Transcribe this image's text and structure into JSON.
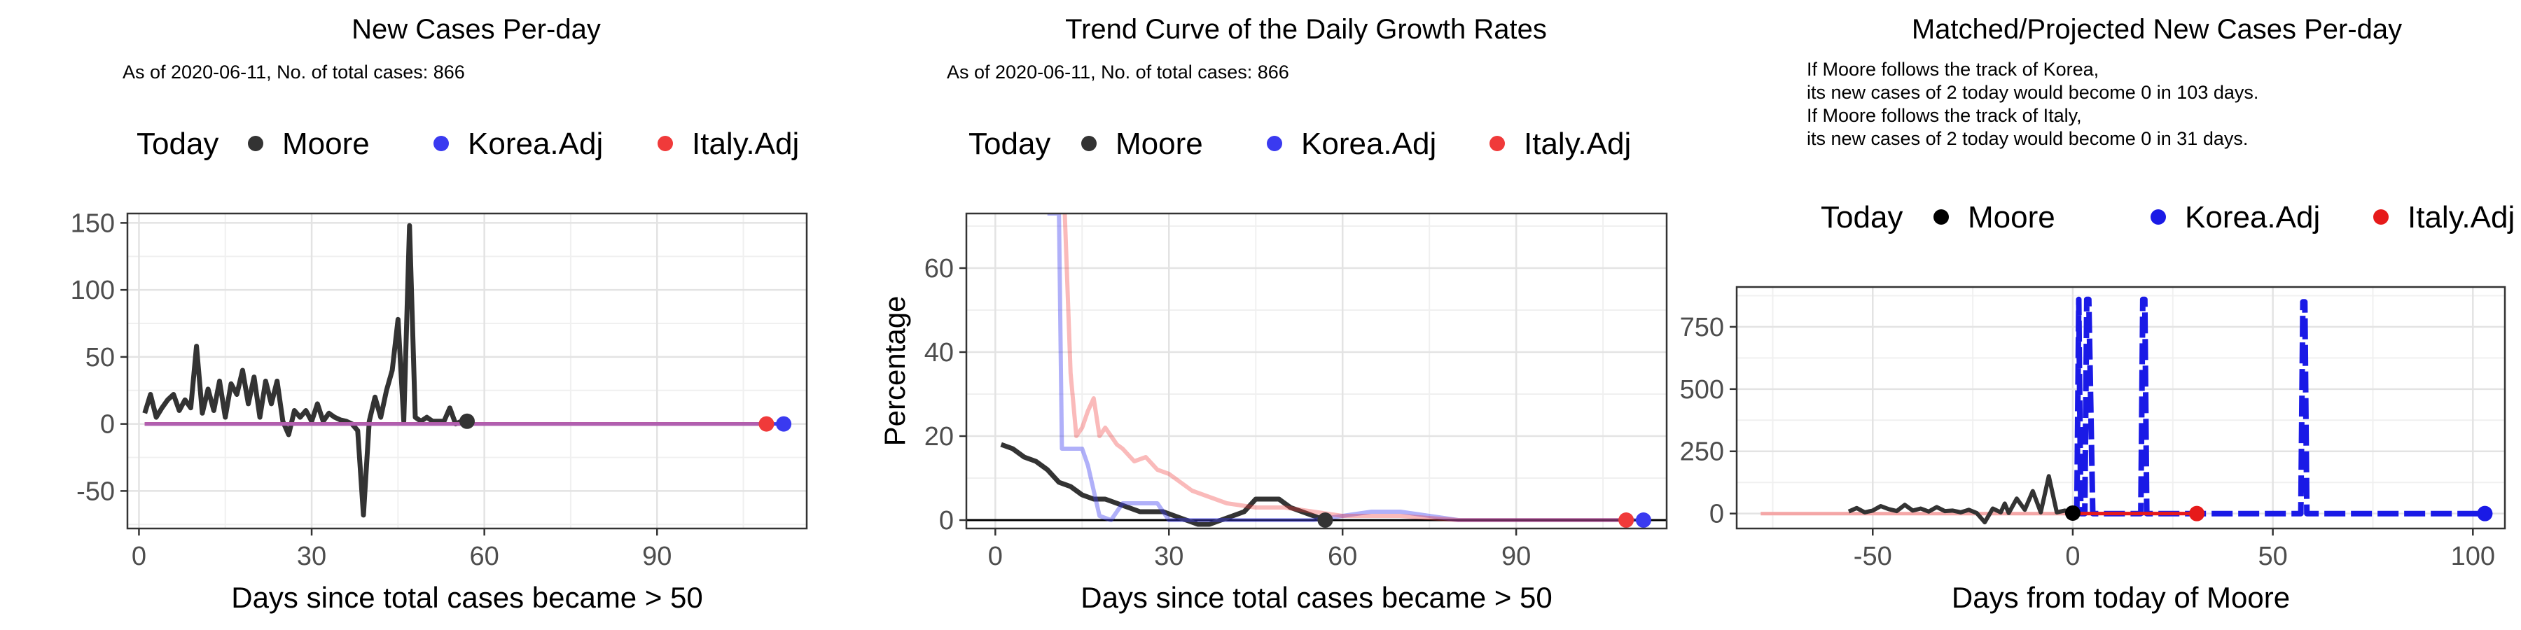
{
  "chart_data": [
    {
      "type": "line",
      "title": "New Cases Per-day",
      "subtitle": "As of 2020-06-11, No. of total cases: 866",
      "legend_title": "Today",
      "legend": [
        "Moore",
        "Korea.Adj",
        "Italy.Adj"
      ],
      "xlabel": "Days since total cases became > 50",
      "ylabel": "",
      "xlim": [
        -2,
        116
      ],
      "ylim": [
        -78,
        157
      ],
      "xticks": [
        0,
        30,
        60,
        90
      ],
      "yticks": [
        -50,
        0,
        50,
        100,
        150
      ],
      "series": [
        {
          "name": "Moore",
          "color": "#333333",
          "x": [
            1,
            2,
            3,
            4,
            5,
            6,
            7,
            8,
            9,
            10,
            11,
            12,
            13,
            14,
            15,
            16,
            17,
            18,
            19,
            20,
            21,
            22,
            23,
            24,
            25,
            26,
            27,
            28,
            29,
            30,
            31,
            32,
            33,
            34,
            35,
            36,
            37,
            38,
            39,
            40,
            41,
            42,
            43,
            44,
            45,
            46,
            47,
            48,
            49,
            50,
            51,
            52,
            53,
            54,
            55,
            56,
            57
          ],
          "y": [
            8,
            22,
            5,
            12,
            18,
            22,
            10,
            18,
            12,
            58,
            8,
            26,
            10,
            32,
            5,
            30,
            22,
            40,
            15,
            35,
            5,
            32,
            15,
            32,
            2,
            -8,
            10,
            5,
            10,
            2,
            15,
            2,
            8,
            5,
            3,
            2,
            0,
            -5,
            -68,
            2,
            20,
            5,
            25,
            40,
            78,
            2,
            148,
            5,
            2,
            5,
            2,
            2,
            2,
            12,
            0,
            2,
            2
          ]
        },
        {
          "name": "Korea.Adj",
          "color": "#3a3af0",
          "x": [
            1,
            10,
            20,
            30,
            40,
            50,
            60,
            70,
            80,
            90,
            100,
            110,
            112
          ],
          "y": [
            0,
            0,
            0,
            0,
            0,
            0,
            0,
            0,
            0,
            0,
            0,
            0,
            0
          ]
        },
        {
          "name": "Italy.Adj",
          "color": "#f03a3a",
          "x": [
            1,
            10,
            20,
            30,
            40,
            50,
            60,
            70,
            80,
            90,
            100,
            109
          ],
          "y": [
            0,
            0,
            0,
            0,
            0,
            0,
            0,
            0,
            0,
            0,
            0,
            0
          ]
        }
      ],
      "today_points": [
        {
          "series": "Moore",
          "x": 57,
          "y": 2
        },
        {
          "series": "Italy.Adj",
          "x": 109,
          "y": 0
        },
        {
          "series": "Korea.Adj",
          "x": 112,
          "y": 0
        }
      ]
    },
    {
      "type": "line",
      "title": "Trend Curve of the Daily Growth Rates",
      "subtitle": "As of 2020-06-11, No. of total cases: 866",
      "legend_title": "Today",
      "legend": [
        "Moore",
        "Korea.Adj",
        "Italy.Adj"
      ],
      "xlabel": "Days since total cases became > 50",
      "ylabel": "Percentage",
      "xlim": [
        -5,
        116
      ],
      "ylim": [
        -2,
        73
      ],
      "xticks": [
        0,
        30,
        60,
        90
      ],
      "yticks": [
        0,
        20,
        40,
        60
      ],
      "series": [
        {
          "name": "Moore",
          "color": "#333333",
          "x": [
            1,
            3,
            5,
            7,
            9,
            11,
            13,
            15,
            17,
            19,
            21,
            23,
            25,
            27,
            29,
            31,
            33,
            35,
            37,
            39,
            41,
            43,
            45,
            47,
            49,
            51,
            53,
            55,
            57
          ],
          "y": [
            18,
            17,
            15,
            14,
            12,
            9,
            8,
            6,
            5,
            5,
            4,
            3,
            2,
            2,
            2,
            1,
            0,
            -1,
            -1,
            0,
            1,
            2,
            5,
            5,
            5,
            3,
            2,
            1,
            0
          ]
        },
        {
          "name": "Korea.Adj",
          "color": "#3a3af0",
          "x": [
            9,
            11,
            11.5,
            15,
            16,
            18,
            20,
            22,
            28,
            30,
            32,
            35,
            40,
            45,
            50,
            55,
            60,
            65,
            70,
            75,
            80,
            90,
            100,
            110,
            112
          ],
          "y": [
            73,
            73,
            17,
            17,
            13,
            1,
            0,
            4,
            4,
            0,
            0,
            0,
            0,
            0,
            0,
            0,
            1,
            2,
            2,
            1,
            0,
            0,
            0,
            0,
            0
          ]
        },
        {
          "name": "Italy.Adj",
          "color": "#f03a3a",
          "x": [
            12,
            13,
            14,
            15,
            16,
            17,
            18,
            19,
            20,
            21,
            22,
            24,
            26,
            28,
            30,
            32,
            34,
            36,
            38,
            40,
            45,
            50,
            55,
            60,
            70,
            80,
            90,
            100,
            109
          ],
          "y": [
            73,
            35,
            20,
            22,
            26,
            29,
            20,
            22,
            20,
            18,
            17,
            14,
            15,
            12,
            11,
            9,
            7,
            6,
            5,
            4,
            3,
            3,
            2,
            1,
            1,
            0,
            0,
            0,
            0
          ]
        }
      ],
      "today_points": [
        {
          "series": "Moore",
          "x": 57,
          "y": 0
        },
        {
          "series": "Italy.Adj",
          "x": 109,
          "y": 0
        },
        {
          "series": "Korea.Adj",
          "x": 112,
          "y": 0
        }
      ]
    },
    {
      "type": "line",
      "title": "Matched/Projected New Cases Per-day",
      "subtitle_lines": [
        "If Moore follows the track of Korea,",
        "its new cases of 2 today would become 0 in 103 days.",
        "If Moore follows the track of Italy,",
        "its new cases of 2 today would become 0 in 31 days."
      ],
      "legend_title": "Today",
      "legend": [
        "Moore",
        "Korea.Adj",
        "Italy.Adj"
      ],
      "xlabel": "Days from today of Moore",
      "ylabel": "",
      "xlim": [
        -84,
        108
      ],
      "ylim": [
        -60,
        910
      ],
      "xticks": [
        -50,
        0,
        50,
        100
      ],
      "yticks": [
        0,
        250,
        500,
        750
      ],
      "series": [
        {
          "name": "Italy.Adj",
          "color": "#f4a6a6",
          "x": [
            -78,
            -60,
            -40,
            -20,
            0,
            10,
            20,
            31
          ],
          "y": [
            0,
            0,
            0,
            0,
            0,
            0,
            0,
            0
          ]
        },
        {
          "name": "Korea.Adj",
          "color": "#1a1ae6",
          "x": [
            0,
            1,
            1.5,
            2,
            3,
            3.5,
            4,
            5,
            5.5,
            6,
            17,
            17.5,
            18,
            18.5,
            19,
            57,
            57.5,
            58,
            58.5,
            59,
            103
          ],
          "y": [
            0,
            0,
            860,
            0,
            0,
            860,
            860,
            0,
            0,
            0,
            0,
            860,
            860,
            0,
            0,
            0,
            850,
            850,
            0,
            0,
            0
          ]
        },
        {
          "name": "Moore",
          "color": "#333333",
          "x": [
            -56,
            -54,
            -52,
            -50,
            -48,
            -46,
            -44,
            -42,
            -40,
            -38,
            -36,
            -34,
            -32,
            -30,
            -28,
            -26,
            -24,
            -22,
            -20,
            -18,
            -17,
            -16,
            -14,
            -12,
            -10,
            -8,
            -6,
            -4,
            -2,
            0
          ],
          "y": [
            8,
            22,
            5,
            12,
            30,
            18,
            10,
            35,
            12,
            20,
            8,
            26,
            10,
            12,
            5,
            15,
            2,
            -35,
            20,
            5,
            40,
            2,
            60,
            15,
            90,
            5,
            150,
            5,
            12,
            2
          ]
        }
      ],
      "today_points": [
        {
          "series": "Moore",
          "x": 0,
          "y": 2
        },
        {
          "series": "Italy.Adj",
          "x": 31,
          "y": 0
        },
        {
          "series": "Korea.Adj",
          "x": 103,
          "y": 0
        }
      ]
    }
  ]
}
